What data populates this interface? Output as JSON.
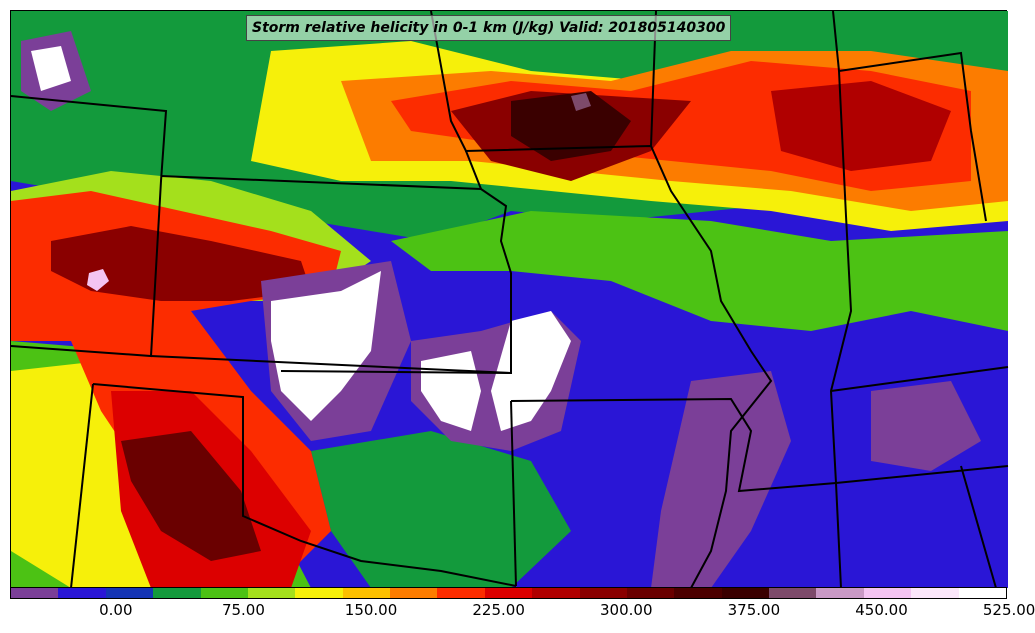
{
  "title": "Storm relative helicity in 0-1 km (J/kg) Valid: 201805140300",
  "colorbar": {
    "colors": [
      "#7b3f98",
      "#2a16d6",
      "#1434b4",
      "#139a3c",
      "#4cc214",
      "#a4e01c",
      "#f6f00a",
      "#fcc000",
      "#fc7c00",
      "#fc2c00",
      "#dc0000",
      "#b00000",
      "#8a0000",
      "#6a0000",
      "#4c0000",
      "#3a0000",
      "#7d4a6a",
      "#c999c5",
      "#f4c4f2",
      "#fbe6fa",
      "#ffffff"
    ],
    "tick_labels": [
      "0.00",
      "75.00",
      "150.00",
      "225.00",
      "300.00",
      "375.00",
      "450.00",
      "525.00"
    ],
    "tick_values": [
      0,
      75,
      150,
      225,
      300,
      375,
      450,
      525
    ],
    "range": [
      -37.5,
      525
    ]
  }
}
